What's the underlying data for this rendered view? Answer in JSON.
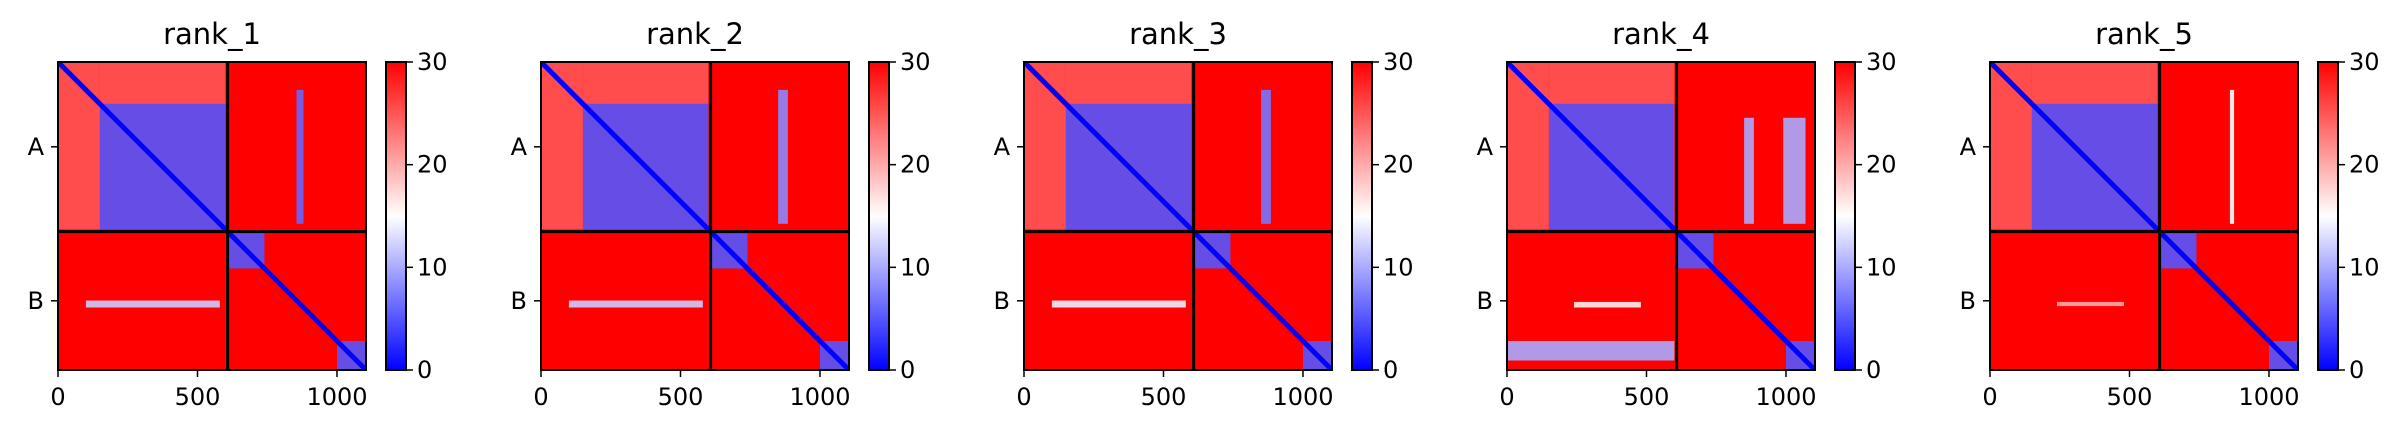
{
  "chart_data": [
    {
      "type": "heatmap",
      "title": "rank_1",
      "xticks": [
        0,
        500,
        1000
      ],
      "xlim": [
        0,
        1104
      ],
      "yticks": [
        {
          "label": "A",
          "value": 304
        },
        {
          "label": "B",
          "value": 856
        }
      ],
      "chains": [
        {
          "name": "A",
          "start": 0,
          "end": 608
        },
        {
          "name": "B",
          "start": 608,
          "end": 1104
        }
      ],
      "colorbar": {
        "min": 0,
        "max": 30,
        "ticks": [
          0,
          10,
          20,
          30
        ],
        "colors": [
          "#0000ff",
          "#ffffff",
          "#ff0000"
        ]
      },
      "features": [
        {
          "kind": "block",
          "x": [
            150,
            600
          ],
          "y": [
            150,
            600
          ],
          "value": 5
        },
        {
          "kind": "band",
          "x": [
            0,
            150
          ],
          "y": [
            0,
            600
          ],
          "value": 24
        },
        {
          "kind": "band",
          "x": [
            150,
            600
          ],
          "y": [
            0,
            150
          ],
          "value": 24
        },
        {
          "kind": "block",
          "x": [
            610,
            740
          ],
          "y": [
            610,
            740
          ],
          "value": 5
        },
        {
          "kind": "block",
          "x": [
            1000,
            1104
          ],
          "y": [
            1000,
            1104
          ],
          "value": 5
        },
        {
          "kind": "stripe",
          "x": [
            855,
            880
          ],
          "y": [
            100,
            580
          ],
          "value": 6
        },
        {
          "kind": "stripe",
          "x": [
            100,
            580
          ],
          "y": [
            855,
            880
          ],
          "value": 12
        }
      ]
    },
    {
      "type": "heatmap",
      "title": "rank_2",
      "xticks": [
        0,
        500,
        1000
      ],
      "xlim": [
        0,
        1104
      ],
      "yticks": [
        {
          "label": "A",
          "value": 304
        },
        {
          "label": "B",
          "value": 856
        }
      ],
      "chains": [
        {
          "name": "A",
          "start": 0,
          "end": 608
        },
        {
          "name": "B",
          "start": 608,
          "end": 1104
        }
      ],
      "colorbar": {
        "min": 0,
        "max": 30,
        "ticks": [
          0,
          10,
          20,
          30
        ],
        "colors": [
          "#0000ff",
          "#ffffff",
          "#ff0000"
        ]
      },
      "features": [
        {
          "kind": "block",
          "x": [
            150,
            600
          ],
          "y": [
            150,
            600
          ],
          "value": 5
        },
        {
          "kind": "band",
          "x": [
            0,
            150
          ],
          "y": [
            0,
            600
          ],
          "value": 24
        },
        {
          "kind": "band",
          "x": [
            150,
            600
          ],
          "y": [
            0,
            150
          ],
          "value": 24
        },
        {
          "kind": "block",
          "x": [
            610,
            740
          ],
          "y": [
            610,
            740
          ],
          "value": 5
        },
        {
          "kind": "block",
          "x": [
            1000,
            1104
          ],
          "y": [
            1000,
            1104
          ],
          "value": 5
        },
        {
          "kind": "stripe",
          "x": [
            850,
            885
          ],
          "y": [
            100,
            580
          ],
          "value": 8
        },
        {
          "kind": "stripe",
          "x": [
            100,
            580
          ],
          "y": [
            855,
            880
          ],
          "value": 12
        }
      ]
    },
    {
      "type": "heatmap",
      "title": "rank_3",
      "xticks": [
        0,
        500,
        1000
      ],
      "xlim": [
        0,
        1104
      ],
      "yticks": [
        {
          "label": "A",
          "value": 304
        },
        {
          "label": "B",
          "value": 856
        }
      ],
      "chains": [
        {
          "name": "A",
          "start": 0,
          "end": 608
        },
        {
          "name": "B",
          "start": 608,
          "end": 1104
        }
      ],
      "colorbar": {
        "min": 0,
        "max": 30,
        "ticks": [
          0,
          10,
          20,
          30
        ],
        "colors": [
          "#0000ff",
          "#ffffff",
          "#ff0000"
        ]
      },
      "features": [
        {
          "kind": "block",
          "x": [
            150,
            600
          ],
          "y": [
            150,
            600
          ],
          "value": 5
        },
        {
          "kind": "band",
          "x": [
            0,
            150
          ],
          "y": [
            0,
            600
          ],
          "value": 24
        },
        {
          "kind": "band",
          "x": [
            150,
            600
          ],
          "y": [
            0,
            150
          ],
          "value": 24
        },
        {
          "kind": "block",
          "x": [
            610,
            740
          ],
          "y": [
            610,
            740
          ],
          "value": 5
        },
        {
          "kind": "block",
          "x": [
            1000,
            1104
          ],
          "y": [
            1000,
            1104
          ],
          "value": 5
        },
        {
          "kind": "stripe",
          "x": [
            850,
            885
          ],
          "y": [
            100,
            580
          ],
          "value": 7
        },
        {
          "kind": "stripe",
          "x": [
            100,
            580
          ],
          "y": [
            855,
            880
          ],
          "value": 14
        }
      ]
    },
    {
      "type": "heatmap",
      "title": "rank_4",
      "xticks": [
        0,
        500,
        1000
      ],
      "xlim": [
        0,
        1104
      ],
      "yticks": [
        {
          "label": "A",
          "value": 304
        },
        {
          "label": "B",
          "value": 856
        }
      ],
      "chains": [
        {
          "name": "A",
          "start": 0,
          "end": 608
        },
        {
          "name": "B",
          "start": 608,
          "end": 1104
        }
      ],
      "colorbar": {
        "min": 0,
        "max": 30,
        "ticks": [
          0,
          10,
          20,
          30
        ],
        "colors": [
          "#0000ff",
          "#ffffff",
          "#ff0000"
        ]
      },
      "features": [
        {
          "kind": "block",
          "x": [
            150,
            600
          ],
          "y": [
            150,
            600
          ],
          "value": 5
        },
        {
          "kind": "band",
          "x": [
            0,
            150
          ],
          "y": [
            0,
            600
          ],
          "value": 24
        },
        {
          "kind": "band",
          "x": [
            150,
            600
          ],
          "y": [
            0,
            150
          ],
          "value": 24
        },
        {
          "kind": "block",
          "x": [
            610,
            740
          ],
          "y": [
            610,
            740
          ],
          "value": 5
        },
        {
          "kind": "block",
          "x": [
            1000,
            1104
          ],
          "y": [
            1000,
            1104
          ],
          "value": 5
        },
        {
          "kind": "stripe",
          "x": [
            850,
            885
          ],
          "y": [
            200,
            580
          ],
          "value": 10
        },
        {
          "kind": "stripe",
          "x": [
            990,
            1070
          ],
          "y": [
            200,
            580
          ],
          "value": 10
        },
        {
          "kind": "stripe",
          "x": [
            240,
            480
          ],
          "y": [
            860,
            880
          ],
          "value": 16
        },
        {
          "kind": "block",
          "x": [
            0,
            600
          ],
          "y": [
            1000,
            1070
          ],
          "value": 10
        }
      ]
    },
    {
      "type": "heatmap",
      "title": "rank_5",
      "xticks": [
        0,
        500,
        1000
      ],
      "xlim": [
        0,
        1104
      ],
      "yticks": [
        {
          "label": "A",
          "value": 304
        },
        {
          "label": "B",
          "value": 856
        }
      ],
      "chains": [
        {
          "name": "A",
          "start": 0,
          "end": 608
        },
        {
          "name": "B",
          "start": 608,
          "end": 1104
        }
      ],
      "colorbar": {
        "min": 0,
        "max": 30,
        "ticks": [
          0,
          10,
          20,
          30
        ],
        "colors": [
          "#0000ff",
          "#ffffff",
          "#ff0000"
        ]
      },
      "features": [
        {
          "kind": "block",
          "x": [
            150,
            600
          ],
          "y": [
            150,
            600
          ],
          "value": 5
        },
        {
          "kind": "band",
          "x": [
            0,
            150
          ],
          "y": [
            0,
            600
          ],
          "value": 24
        },
        {
          "kind": "band",
          "x": [
            150,
            600
          ],
          "y": [
            0,
            150
          ],
          "value": 24
        },
        {
          "kind": "block",
          "x": [
            610,
            740
          ],
          "y": [
            610,
            740
          ],
          "value": 5
        },
        {
          "kind": "block",
          "x": [
            1000,
            1104
          ],
          "y": [
            1000,
            1104
          ],
          "value": 5
        },
        {
          "kind": "stripe",
          "x": [
            860,
            875
          ],
          "y": [
            100,
            580
          ],
          "value": 15
        },
        {
          "kind": "stripe",
          "x": [
            240,
            480
          ],
          "y": [
            860,
            875
          ],
          "value": 20
        }
      ]
    }
  ]
}
